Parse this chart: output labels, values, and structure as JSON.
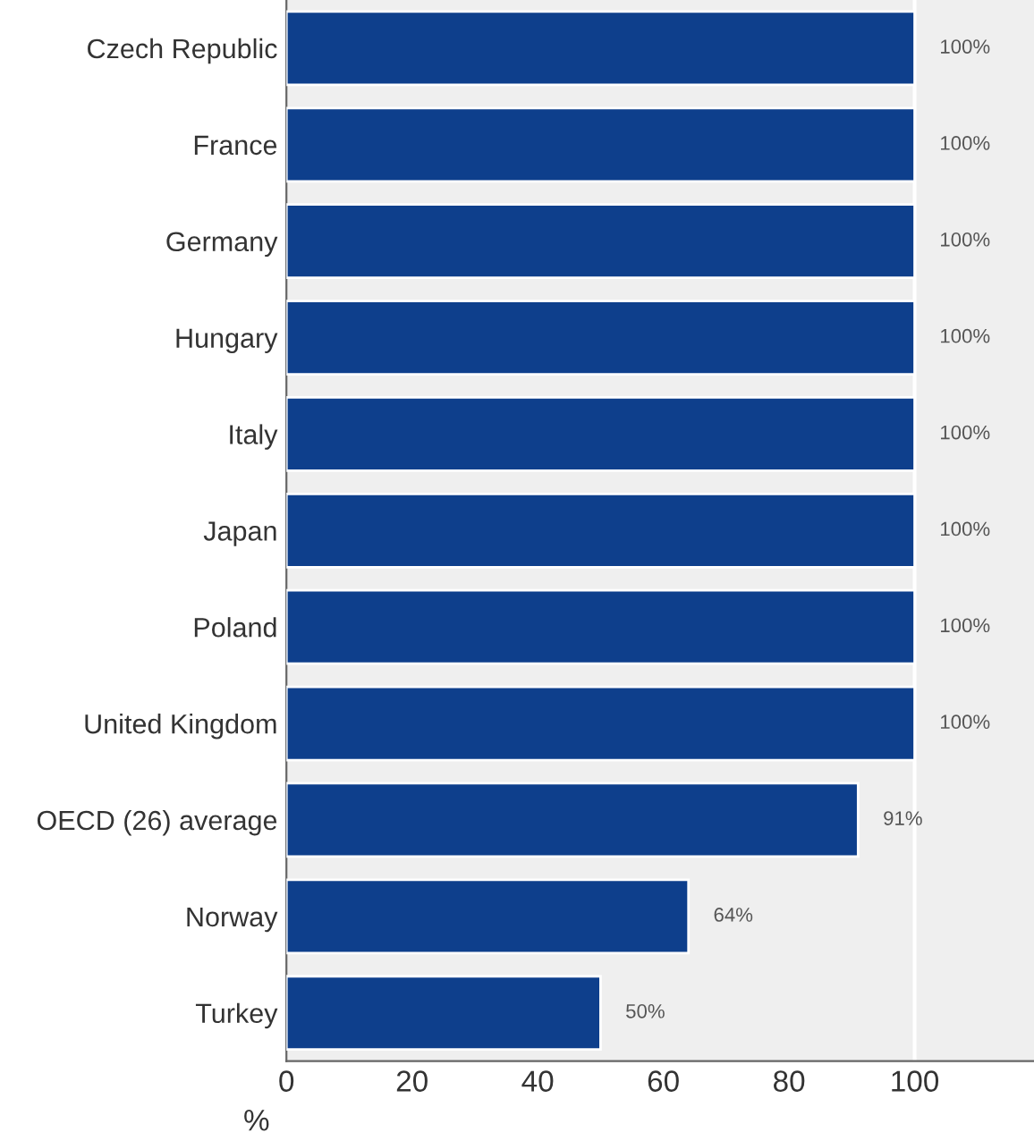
{
  "chart_data": {
    "type": "bar",
    "orientation": "horizontal",
    "xlabel": "%",
    "categories": [
      "Czech Republic",
      "France",
      "Germany",
      "Hungary",
      "Italy",
      "Japan",
      "Poland",
      "United Kingdom",
      "OECD (26) average",
      "Norway",
      "Turkey"
    ],
    "values": [
      100,
      100,
      100,
      100,
      100,
      100,
      100,
      100,
      91,
      64,
      50
    ],
    "value_labels": [
      "100%",
      "100%",
      "100%",
      "100%",
      "100%",
      "100%",
      "100%",
      "100%",
      "91%",
      "64%",
      "50%"
    ],
    "color": "#0e3f8c",
    "xlim": [
      0,
      119
    ],
    "xticks": [
      0,
      20,
      40,
      60,
      80,
      100
    ],
    "ref_lines": [
      {
        "axis": "x",
        "value": 100,
        "color": "#ffffff"
      }
    ],
    "grid": false,
    "legend": false
  }
}
